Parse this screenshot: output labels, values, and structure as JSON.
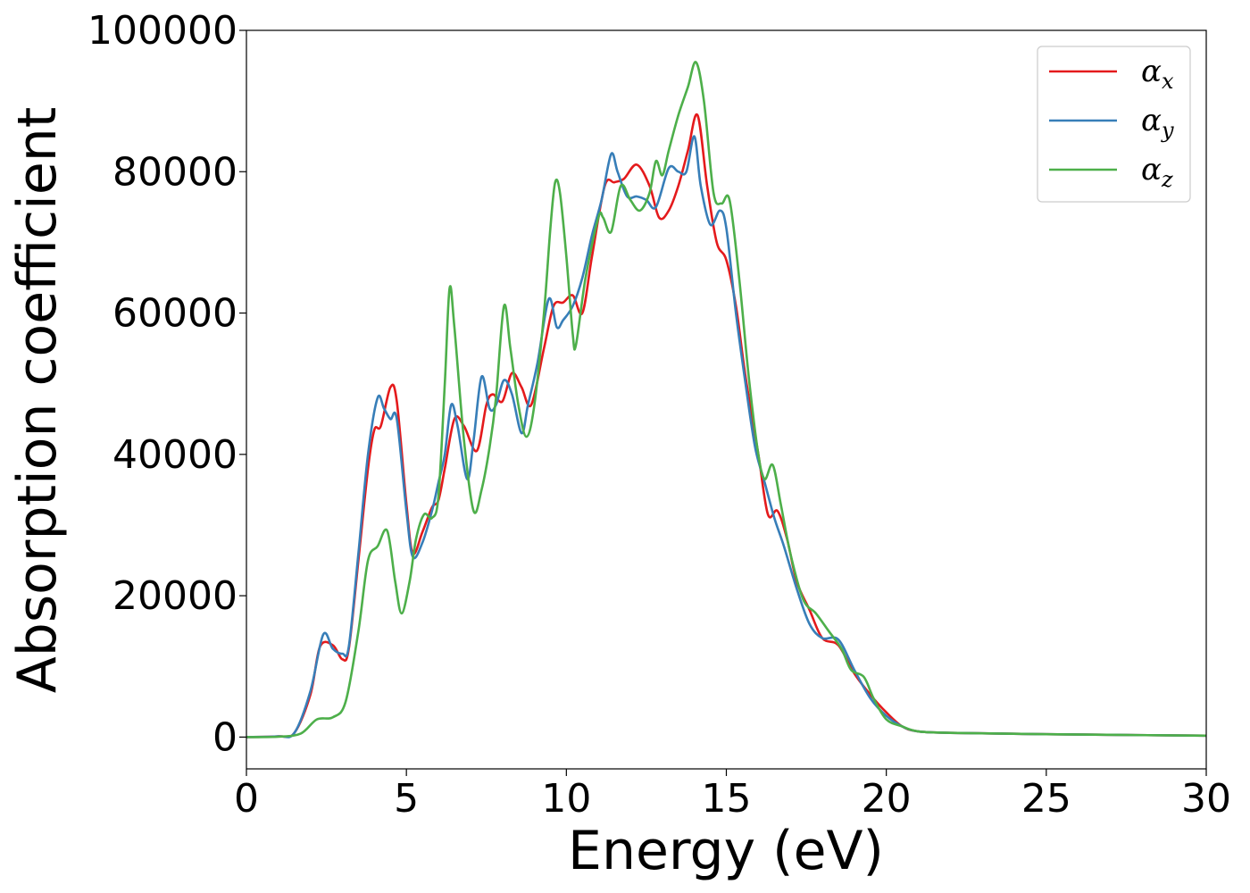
{
  "chart_data": {
    "type": "line",
    "xlabel": "Energy (eV)",
    "ylabel": "Absorption coefficient",
    "xlim": [
      0,
      30
    ],
    "ylim": [
      -4500,
      100000
    ],
    "xticks": [
      0,
      5,
      10,
      15,
      20,
      25,
      30
    ],
    "xtick_labels": [
      "0",
      "5",
      "10",
      "15",
      "20",
      "25",
      "30"
    ],
    "yticks": [
      0,
      20000,
      40000,
      60000,
      80000,
      100000
    ],
    "ytick_labels": [
      "0",
      "20000",
      "40000",
      "60000",
      "80000",
      "100000"
    ],
    "grid": false,
    "legend_position": "top-right",
    "series": [
      {
        "name": "α",
        "subscript": "x",
        "color": "#e41a1c",
        "points": [
          [
            0,
            0
          ],
          [
            1,
            100
          ],
          [
            1.5,
            600
          ],
          [
            2,
            6000
          ],
          [
            2.3,
            12800
          ],
          [
            2.7,
            13000
          ],
          [
            3,
            11000
          ],
          [
            3.2,
            12500
          ],
          [
            3.5,
            25000
          ],
          [
            3.8,
            38000
          ],
          [
            4,
            43500
          ],
          [
            4.2,
            44000
          ],
          [
            4.5,
            49500
          ],
          [
            4.7,
            47500
          ],
          [
            5,
            33000
          ],
          [
            5.2,
            26000
          ],
          [
            5.5,
            29000
          ],
          [
            5.8,
            32500
          ],
          [
            6,
            33500
          ],
          [
            6.2,
            38000
          ],
          [
            6.5,
            45000
          ],
          [
            6.8,
            44000
          ],
          [
            7.2,
            40500
          ],
          [
            7.5,
            47000
          ],
          [
            7.7,
            48500
          ],
          [
            8,
            47500
          ],
          [
            8.3,
            51500
          ],
          [
            8.6,
            49500
          ],
          [
            8.9,
            47000
          ],
          [
            9.3,
            55000
          ],
          [
            9.6,
            61000
          ],
          [
            9.9,
            61500
          ],
          [
            10.2,
            62500
          ],
          [
            10.5,
            60000
          ],
          [
            10.8,
            68000
          ],
          [
            11.2,
            78000
          ],
          [
            11.5,
            78500
          ],
          [
            11.8,
            79000
          ],
          [
            12.2,
            81000
          ],
          [
            12.6,
            78000
          ],
          [
            12.9,
            73500
          ],
          [
            13.2,
            74500
          ],
          [
            13.5,
            78000
          ],
          [
            13.8,
            83000
          ],
          [
            14.1,
            88000
          ],
          [
            14.4,
            78000
          ],
          [
            14.7,
            70000
          ],
          [
            15,
            67500
          ],
          [
            15.3,
            61000
          ],
          [
            15.6,
            51000
          ],
          [
            16,
            40000
          ],
          [
            16.3,
            31500
          ],
          [
            16.6,
            32000
          ],
          [
            16.9,
            28000
          ],
          [
            17.2,
            22000
          ],
          [
            17.6,
            18000
          ],
          [
            18,
            14000
          ],
          [
            18.5,
            13000
          ],
          [
            19,
            9000
          ],
          [
            19.5,
            6000
          ],
          [
            20,
            3500
          ],
          [
            20.5,
            1500
          ],
          [
            21,
            800
          ],
          [
            22,
            600
          ],
          [
            25,
            400
          ],
          [
            30,
            200
          ]
        ]
      },
      {
        "name": "α",
        "subscript": "y",
        "color": "#377eb8",
        "points": [
          [
            0,
            0
          ],
          [
            1,
            100
          ],
          [
            1.5,
            600
          ],
          [
            2,
            6500
          ],
          [
            2.4,
            14500
          ],
          [
            2.7,
            12500
          ],
          [
            3,
            11800
          ],
          [
            3.2,
            12800
          ],
          [
            3.5,
            26000
          ],
          [
            3.8,
            40000
          ],
          [
            4.1,
            48000
          ],
          [
            4.3,
            46500
          ],
          [
            4.5,
            45000
          ],
          [
            4.7,
            45000
          ],
          [
            5,
            32000
          ],
          [
            5.2,
            25500
          ],
          [
            5.5,
            27500
          ],
          [
            5.8,
            32000
          ],
          [
            6,
            36000
          ],
          [
            6.2,
            40000
          ],
          [
            6.4,
            47000
          ],
          [
            6.6,
            44000
          ],
          [
            6.9,
            36500
          ],
          [
            7.1,
            42000
          ],
          [
            7.35,
            51000
          ],
          [
            7.6,
            46500
          ],
          [
            7.8,
            47000
          ],
          [
            8.05,
            50500
          ],
          [
            8.3,
            48500
          ],
          [
            8.6,
            43000
          ],
          [
            8.8,
            47000
          ],
          [
            9.1,
            53000
          ],
          [
            9.45,
            62000
          ],
          [
            9.7,
            58000
          ],
          [
            9.9,
            59000
          ],
          [
            10.2,
            61000
          ],
          [
            10.5,
            65000
          ],
          [
            10.8,
            71000
          ],
          [
            11.1,
            76000
          ],
          [
            11.4,
            82500
          ],
          [
            11.6,
            80000
          ],
          [
            11.9,
            76500
          ],
          [
            12.2,
            76500
          ],
          [
            12.5,
            76000
          ],
          [
            12.8,
            75000
          ],
          [
            13.2,
            80500
          ],
          [
            13.5,
            80000
          ],
          [
            13.75,
            80000
          ],
          [
            14,
            85000
          ],
          [
            14.2,
            78000
          ],
          [
            14.5,
            72500
          ],
          [
            14.8,
            74500
          ],
          [
            15,
            72000
          ],
          [
            15.3,
            60000
          ],
          [
            15.6,
            50000
          ],
          [
            15.9,
            41000
          ],
          [
            16.2,
            36000
          ],
          [
            16.5,
            31000
          ],
          [
            16.8,
            27000
          ],
          [
            17.2,
            21000
          ],
          [
            17.6,
            16000
          ],
          [
            18,
            14000
          ],
          [
            18.5,
            13800
          ],
          [
            19,
            9500
          ],
          [
            19.5,
            5500
          ],
          [
            20,
            3000
          ],
          [
            20.5,
            1500
          ],
          [
            21,
            800
          ],
          [
            22,
            600
          ],
          [
            25,
            400
          ],
          [
            30,
            200
          ]
        ]
      },
      {
        "name": "α",
        "subscript": "z",
        "color": "#4daf4a",
        "points": [
          [
            0,
            0
          ],
          [
            1,
            50
          ],
          [
            1.7,
            500
          ],
          [
            2.2,
            2500
          ],
          [
            2.7,
            2800
          ],
          [
            3.1,
            5000
          ],
          [
            3.5,
            15000
          ],
          [
            3.8,
            25000
          ],
          [
            4.1,
            27000
          ],
          [
            4.4,
            29200
          ],
          [
            4.65,
            22000
          ],
          [
            4.85,
            17500
          ],
          [
            5.1,
            22000
          ],
          [
            5.3,
            28000
          ],
          [
            5.55,
            31500
          ],
          [
            5.8,
            31000
          ],
          [
            6,
            34000
          ],
          [
            6.2,
            50000
          ],
          [
            6.35,
            63500
          ],
          [
            6.5,
            58000
          ],
          [
            6.8,
            42000
          ],
          [
            7.1,
            32000
          ],
          [
            7.35,
            35000
          ],
          [
            7.6,
            41000
          ],
          [
            7.8,
            48000
          ],
          [
            8.05,
            61000
          ],
          [
            8.25,
            55000
          ],
          [
            8.5,
            47000
          ],
          [
            8.75,
            42500
          ],
          [
            9,
            47000
          ],
          [
            9.3,
            60000
          ],
          [
            9.5,
            72000
          ],
          [
            9.65,
            78500
          ],
          [
            9.8,
            77000
          ],
          [
            10,
            68000
          ],
          [
            10.2,
            57000
          ],
          [
            10.3,
            55500
          ],
          [
            10.6,
            65000
          ],
          [
            11,
            73500
          ],
          [
            11.15,
            73500
          ],
          [
            11.4,
            71500
          ],
          [
            11.7,
            78000
          ],
          [
            12,
            76000
          ],
          [
            12.3,
            74500
          ],
          [
            12.6,
            77000
          ],
          [
            12.8,
            81500
          ],
          [
            13,
            79500
          ],
          [
            13.2,
            83000
          ],
          [
            13.5,
            88000
          ],
          [
            13.8,
            92000
          ],
          [
            14.05,
            95500
          ],
          [
            14.3,
            90000
          ],
          [
            14.6,
            77000
          ],
          [
            14.85,
            75500
          ],
          [
            15.1,
            76000
          ],
          [
            15.4,
            65000
          ],
          [
            15.7,
            51000
          ],
          [
            16,
            40000
          ],
          [
            16.2,
            36500
          ],
          [
            16.45,
            38500
          ],
          [
            16.7,
            33000
          ],
          [
            17,
            26000
          ],
          [
            17.4,
            19500
          ],
          [
            17.8,
            17500
          ],
          [
            18.2,
            15000
          ],
          [
            18.6,
            12500
          ],
          [
            18.9,
            9500
          ],
          [
            19.3,
            8500
          ],
          [
            19.6,
            5500
          ],
          [
            20,
            2500
          ],
          [
            20.5,
            1500
          ],
          [
            21,
            800
          ],
          [
            22,
            600
          ],
          [
            25,
            400
          ],
          [
            30,
            200
          ]
        ]
      }
    ]
  }
}
